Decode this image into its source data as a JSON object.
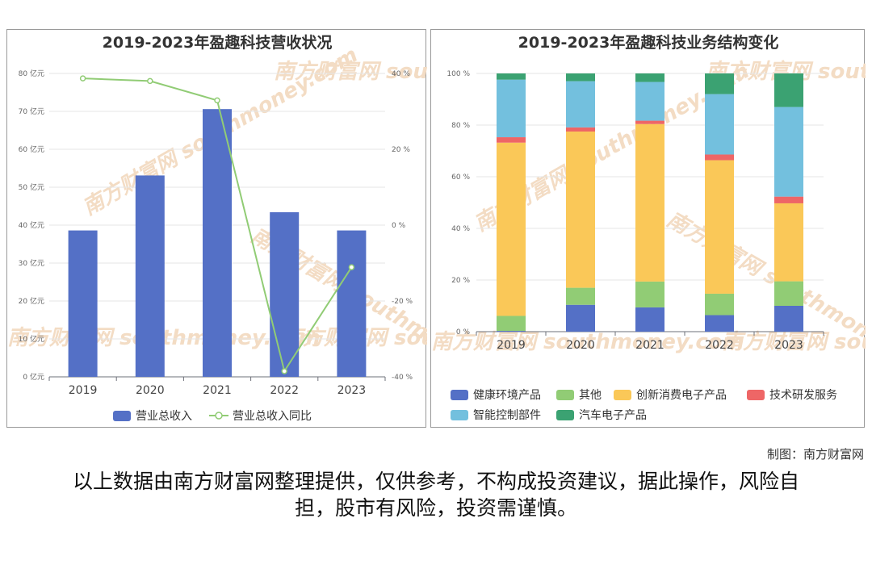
{
  "chart_data": [
    {
      "type": "bar",
      "title": "2019-2023年盈趣科技营收状况",
      "categories": [
        "2019",
        "2020",
        "2021",
        "2022",
        "2023"
      ],
      "series": [
        {
          "name": "营业总收入",
          "type": "bar",
          "axis": "left",
          "color": "#5470c6",
          "values": [
            38.6,
            53.1,
            70.6,
            43.4,
            38.6
          ]
        },
        {
          "name": "营业总收入同比",
          "type": "line",
          "axis": "right",
          "color": "#91cc75",
          "values": [
            38.7,
            38.0,
            32.9,
            -38.5,
            -11.1
          ]
        }
      ],
      "yleft": {
        "ticks": [
          "0 亿元",
          "10 亿元",
          "20 亿元",
          "30 亿元",
          "40 亿元",
          "50 亿元",
          "60 亿元",
          "70 亿元",
          "80 亿元"
        ],
        "ylim": [
          0,
          80
        ]
      },
      "yright": {
        "ticks": [
          "-40 %",
          "-20 %",
          "0 %",
          "20 %",
          "40 %"
        ],
        "ylim": [
          -40,
          40
        ]
      },
      "grid": true,
      "legend": "bottom"
    },
    {
      "type": "bar",
      "stacked": true,
      "title": "2019-2023年盈趣科技业务结构变化",
      "categories": [
        "2019",
        "2020",
        "2021",
        "2022",
        "2023"
      ],
      "series": [
        {
          "name": "健康环境产品",
          "color": "#5470c6",
          "values": [
            0.3,
            10.4,
            9.4,
            6.4,
            10.0
          ]
        },
        {
          "name": "其他",
          "color": "#91cc75",
          "values": [
            5.8,
            6.6,
            10.0,
            8.3,
            9.5
          ]
        },
        {
          "name": "创新消费电子产品",
          "color": "#fac858",
          "values": [
            67.1,
            60.5,
            61.0,
            51.7,
            30.2
          ]
        },
        {
          "name": "技术研发服务",
          "color": "#ee6666",
          "values": [
            2.1,
            1.6,
            1.3,
            2.2,
            2.6
          ]
        },
        {
          "name": "智能控制部件",
          "color": "#73c0de",
          "values": [
            22.3,
            17.9,
            15.0,
            23.4,
            34.7
          ]
        },
        {
          "name": "汽车电子产品",
          "color": "#3ba272",
          "values": [
            2.4,
            3.0,
            3.3,
            8.0,
            13.0
          ]
        }
      ],
      "yticks": [
        "0 %",
        "20 %",
        "40 %",
        "60 %",
        "80 %",
        "100 %"
      ],
      "ylim": [
        0,
        100
      ],
      "grid": true,
      "legend": "bottom"
    }
  ],
  "credit": "制图：南方财富网",
  "disclaimer": "以上数据由南方财富网整理提供，仅供参考，不构成投资建议，据此操作，风险自担，股市有风险，投资需谨慎。",
  "watermark": "南方财富网 southmoney.com"
}
